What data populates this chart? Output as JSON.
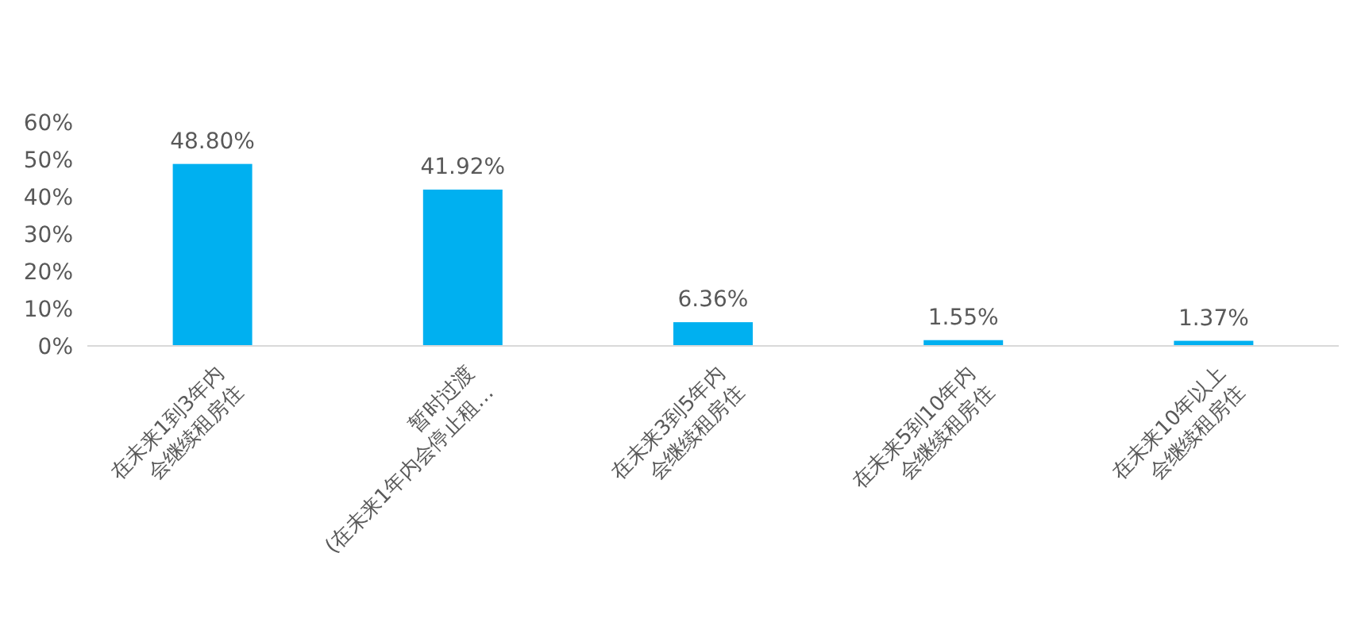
{
  "chart_data": {
    "type": "bar",
    "categories": [
      "在未来1到3年内\n会继续租房住",
      "暂时过渡\n(在未来1年内会停止租…",
      "在未来3到5年内\n会继续租房住",
      "在未来5到10年内\n会继续租房住",
      "在未来10年以上\n会继续租房住"
    ],
    "values": [
      48.8,
      41.92,
      6.36,
      1.55,
      1.37
    ],
    "value_labels": [
      "48.80%",
      "41.92%",
      "6.36%",
      "1.55%",
      "1.37%"
    ],
    "color": "#00b0f0",
    "ylim": [
      0,
      60
    ],
    "yticks": [
      {
        "value": 0,
        "label": "0%"
      },
      {
        "value": 10,
        "label": "10%"
      },
      {
        "value": 20,
        "label": "20%"
      },
      {
        "value": 30,
        "label": "30%"
      },
      {
        "value": 40,
        "label": "40%"
      },
      {
        "value": 50,
        "label": "50%"
      },
      {
        "value": 60,
        "label": "60%"
      }
    ],
    "grid": false
  }
}
